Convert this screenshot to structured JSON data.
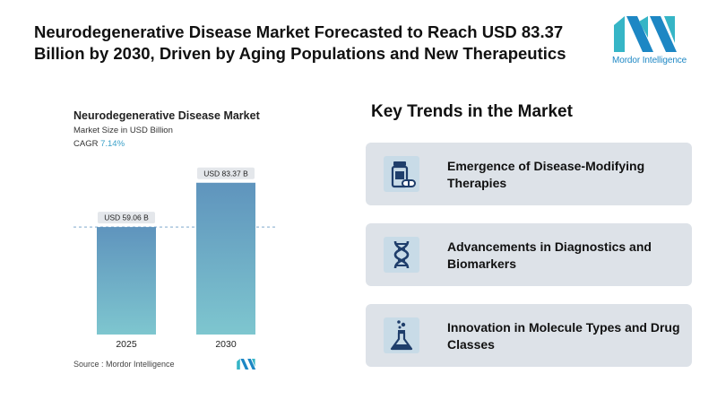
{
  "header": {
    "title": "Neurodegenerative Disease Market Forecasted to Reach USD 83.37 Billion by 2030, Driven by Aging Populations and New Therapeutics"
  },
  "logo": {
    "text": "Mordor Intelligence"
  },
  "chart_data": {
    "type": "bar",
    "title": "Neurodegenerative Disease Market",
    "subtitle": "Market Size in USD Billion",
    "cagr_label": "CAGR",
    "cagr_value": "7.14%",
    "categories": [
      "2025",
      "2030"
    ],
    "values": [
      59.06,
      83.37
    ],
    "data_labels": [
      "USD 59.06 B",
      "USD 83.37 B"
    ],
    "ylim": [
      0,
      100
    ],
    "grid": false,
    "source": "Source :  Mordor Intelligence",
    "colors": {
      "bar_top": "#5f94bd",
      "bar_bottom": "#7ec6cf",
      "reference_line": "#7fa9cc"
    }
  },
  "trends": {
    "title": "Key Trends in the Market",
    "items": [
      {
        "label": "Emergence of Disease-Modifying Therapies",
        "icon": "pill-bottle-icon"
      },
      {
        "label": "Advancements in Diagnostics and Biomarkers",
        "icon": "dna-icon"
      },
      {
        "label": "Innovation in Molecule Types and Drug Classes",
        "icon": "flask-icon"
      }
    ]
  },
  "colors": {
    "brand_blue": "#1d87c4",
    "brand_teal": "#36b5c6",
    "icon_navy": "#1f3e6b",
    "card_bg": "#dde2e8",
    "icon_bg": "#c8dbe7"
  }
}
